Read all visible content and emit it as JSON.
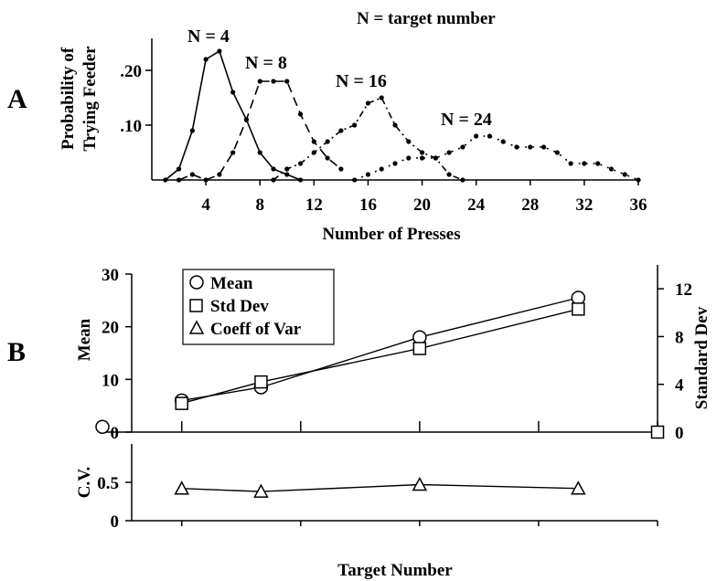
{
  "panel_a": {
    "label": "A",
    "legend_title": "N = target number",
    "chart_data": {
      "type": "line",
      "xlabel": "Number of Presses",
      "ylabel_line1": "Probability of",
      "ylabel_line2": "Trying Feeder",
      "xlim": [
        0,
        36
      ],
      "ylim": [
        0,
        0.25
      ],
      "x_ticks": [
        4,
        8,
        12,
        16,
        20,
        24,
        28,
        32,
        36
      ],
      "y_ticks": [
        0.1,
        0.2
      ],
      "y_tick_labels": [
        ".10",
        ".20"
      ],
      "series": [
        {
          "name": "N = 4",
          "dash": "solid",
          "x": [
            1,
            2,
            3,
            4,
            5,
            6,
            7,
            8,
            9,
            10,
            11
          ],
          "y": [
            0.0,
            0.02,
            0.09,
            0.22,
            0.235,
            0.16,
            0.11,
            0.05,
            0.02,
            0.01,
            0.0
          ]
        },
        {
          "name": "N = 8",
          "dash": "dashed",
          "x": [
            2,
            3,
            4,
            5,
            6,
            7,
            8,
            9,
            10,
            11,
            12,
            13,
            14
          ],
          "y": [
            0.0,
            0.01,
            0.0,
            0.01,
            0.05,
            0.11,
            0.18,
            0.18,
            0.18,
            0.12,
            0.07,
            0.04,
            0.02
          ]
        },
        {
          "name": "N = 16",
          "dash": "dashdot",
          "x": [
            9,
            10,
            11,
            12,
            13,
            14,
            15,
            16,
            17,
            18,
            19,
            20,
            21,
            22,
            23
          ],
          "y": [
            0.0,
            0.02,
            0.03,
            0.05,
            0.07,
            0.09,
            0.1,
            0.14,
            0.15,
            0.1,
            0.07,
            0.05,
            0.04,
            0.01,
            0.0
          ]
        },
        {
          "name": "N = 24",
          "dash": "dotted",
          "x": [
            15,
            16,
            17,
            18,
            19,
            20,
            21,
            22,
            23,
            24,
            25,
            26,
            27,
            28,
            29,
            30,
            31,
            32,
            33,
            34,
            35,
            36
          ],
          "y": [
            0.0,
            0.01,
            0.02,
            0.03,
            0.04,
            0.04,
            0.04,
            0.05,
            0.06,
            0.08,
            0.08,
            0.07,
            0.06,
            0.06,
            0.06,
            0.05,
            0.03,
            0.03,
            0.03,
            0.02,
            0.01,
            0.0
          ]
        }
      ]
    }
  },
  "panel_b": {
    "label": "B",
    "chart_data": {
      "type": "line",
      "xlabel": "Target Number",
      "ylabel_left": "Mean",
      "ylabel_right": "Standard Dev",
      "ylabel_cv": "C.V.",
      "xlim": [
        0,
        28
      ],
      "ylim_left": [
        0,
        30
      ],
      "ylim_right": [
        0,
        14
      ],
      "ylim_cv": [
        0,
        1
      ],
      "x_tick_positions": [
        4,
        10,
        16,
        22,
        28
      ],
      "left_ticks": [
        0,
        10,
        20,
        30
      ],
      "right_ticks": [
        0,
        4,
        8,
        12
      ],
      "cv_ticks": [
        0,
        0.5
      ],
      "cv_tick_labels": [
        "0",
        "0.5"
      ],
      "legend": [
        "Mean",
        "Std Dev",
        "Coeff of Var"
      ],
      "series": [
        {
          "name": "Mean",
          "marker": "circle",
          "axis": "left",
          "x": [
            0,
            4,
            8,
            16,
            24
          ],
          "y": [
            1,
            6,
            8.5,
            18,
            25.5
          ]
        },
        {
          "name": "Std Dev",
          "marker": "square",
          "axis": "right",
          "x": [
            4,
            8,
            16,
            24,
            28
          ],
          "y": [
            2.4,
            4.2,
            7,
            10.3,
            0
          ]
        },
        {
          "name": "Coeff of Var",
          "marker": "triangle",
          "axis": "cv",
          "x": [
            4,
            8,
            16,
            24
          ],
          "y": [
            0.42,
            0.38,
            0.47,
            0.42
          ]
        }
      ]
    }
  }
}
